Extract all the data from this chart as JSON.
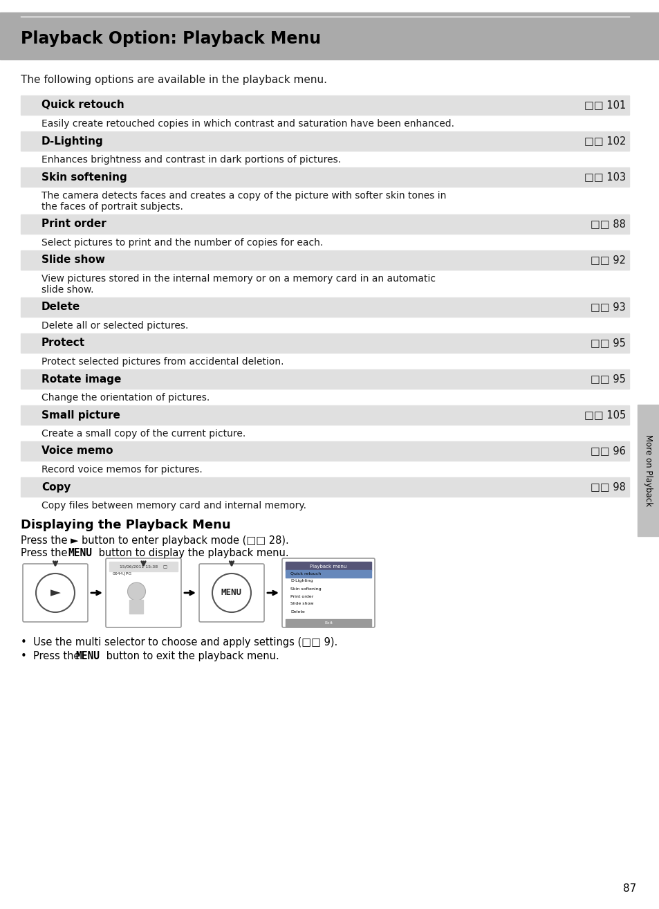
{
  "title": "Playback Option: Playback Menu",
  "header_bg": "#aaaaaa",
  "page_bg": "#ffffff",
  "intro_text": "The following options are available in the playback menu.",
  "row_bg": "#e0e0e0",
  "entries": [
    {
      "label": "Quick retouch",
      "page": "101",
      "desc": "Easily create retouched copies in which contrast and saturation have been enhanced.",
      "desc_lines": 1
    },
    {
      "label": "D-Lighting",
      "page": "102",
      "desc": "Enhances brightness and contrast in dark portions of pictures.",
      "desc_lines": 1
    },
    {
      "label": "Skin softening",
      "page": "103",
      "desc": "The camera detects faces and creates a copy of the picture with softer skin tones in\nthe faces of portrait subjects.",
      "desc_lines": 2
    },
    {
      "label": "Print order",
      "page": "88",
      "desc": "Select pictures to print and the number of copies for each.",
      "desc_lines": 1
    },
    {
      "label": "Slide show",
      "page": "92",
      "desc": "View pictures stored in the internal memory or on a memory card in an automatic\nslide show.",
      "desc_lines": 2
    },
    {
      "label": "Delete",
      "page": "93",
      "desc": "Delete all or selected pictures.",
      "desc_lines": 1
    },
    {
      "label": "Protect",
      "page": "95",
      "desc": "Protect selected pictures from accidental deletion.",
      "desc_lines": 1
    },
    {
      "label": "Rotate image",
      "page": "95",
      "desc": "Change the orientation of pictures.",
      "desc_lines": 1
    },
    {
      "label": "Small picture",
      "page": "105",
      "desc": "Create a small copy of the current picture.",
      "desc_lines": 1
    },
    {
      "label": "Voice memo",
      "page": "96",
      "desc": "Record voice memos for pictures.",
      "desc_lines": 1
    },
    {
      "label": "Copy",
      "page": "98",
      "desc": "Copy files between memory card and internal memory.",
      "desc_lines": 1
    }
  ],
  "section2_title": "Displaying the Playback Menu",
  "page_number": "87",
  "sidebar_text": "More on Playback"
}
